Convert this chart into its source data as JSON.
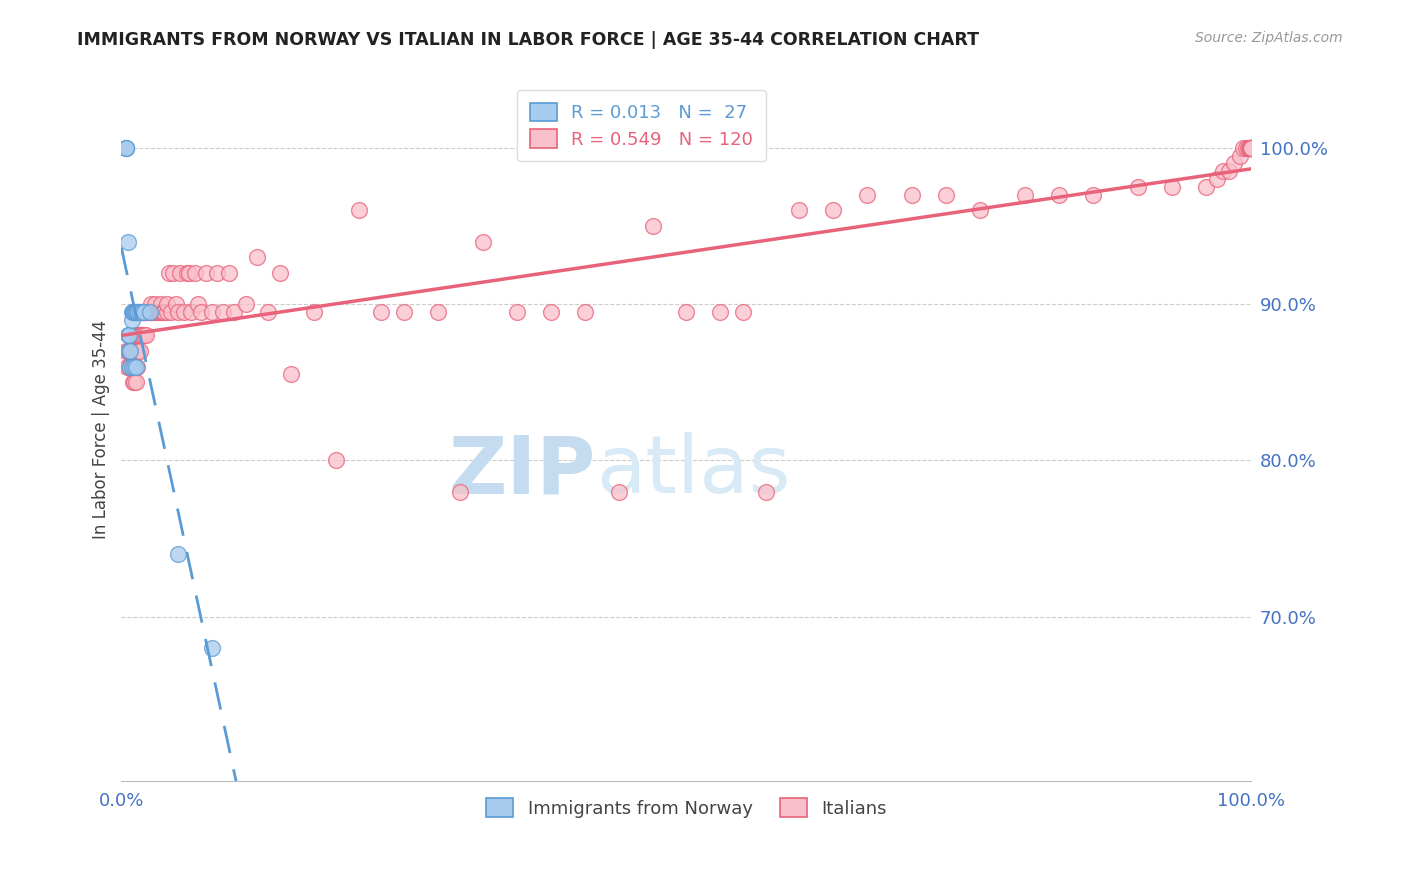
{
  "title": "IMMIGRANTS FROM NORWAY VS ITALIAN IN LABOR FORCE | AGE 35-44 CORRELATION CHART",
  "source": "Source: ZipAtlas.com",
  "ylabel": "In Labor Force | Age 35-44",
  "ytick_labels": [
    "100.0%",
    "90.0%",
    "80.0%",
    "70.0%"
  ],
  "ytick_values": [
    1.0,
    0.9,
    0.8,
    0.7
  ],
  "xlim": [
    0.0,
    1.0
  ],
  "ylim": [
    0.595,
    1.045
  ],
  "legend_norway_R": "0.013",
  "legend_norway_N": "27",
  "legend_italian_R": "0.549",
  "legend_italian_N": "120",
  "norway_fill_color": "#A8CCEE",
  "norway_edge_color": "#5B9BD5",
  "italian_fill_color": "#F9C0CB",
  "italian_edge_color": "#E8637A",
  "norway_line_color": "#5B9BD5",
  "italian_line_color": "#E8637A",
  "watermark_zip": "ZIP",
  "watermark_atlas": "atlas",
  "watermark_color": "#D0E8F8",
  "grid_color": "#CCCCCC",
  "norway_scatter_x": [
    0.004,
    0.004,
    0.004,
    0.006,
    0.006,
    0.007,
    0.007,
    0.008,
    0.008,
    0.009,
    0.009,
    0.009,
    0.01,
    0.01,
    0.011,
    0.011,
    0.012,
    0.013,
    0.013,
    0.014,
    0.015,
    0.016,
    0.018,
    0.02,
    0.025,
    0.05,
    0.08
  ],
  "norway_scatter_y": [
    1.0,
    1.0,
    1.0,
    0.94,
    0.88,
    0.88,
    0.87,
    0.87,
    0.86,
    0.895,
    0.89,
    0.86,
    0.895,
    0.895,
    0.895,
    0.86,
    0.895,
    0.895,
    0.86,
    0.895,
    0.895,
    0.895,
    0.895,
    0.895,
    0.895,
    0.74,
    0.68
  ],
  "italian_scatter_x": [
    0.004,
    0.005,
    0.006,
    0.007,
    0.008,
    0.009,
    0.009,
    0.01,
    0.01,
    0.011,
    0.011,
    0.012,
    0.012,
    0.013,
    0.013,
    0.014,
    0.014,
    0.015,
    0.015,
    0.016,
    0.016,
    0.017,
    0.017,
    0.018,
    0.018,
    0.019,
    0.02,
    0.02,
    0.021,
    0.022,
    0.022,
    0.023,
    0.024,
    0.025,
    0.026,
    0.027,
    0.028,
    0.03,
    0.03,
    0.032,
    0.033,
    0.035,
    0.035,
    0.037,
    0.038,
    0.04,
    0.04,
    0.042,
    0.044,
    0.046,
    0.048,
    0.05,
    0.052,
    0.055,
    0.058,
    0.06,
    0.062,
    0.065,
    0.068,
    0.07,
    0.075,
    0.08,
    0.085,
    0.09,
    0.095,
    0.1,
    0.11,
    0.12,
    0.13,
    0.14,
    0.15,
    0.17,
    0.19,
    0.21,
    0.23,
    0.25,
    0.28,
    0.3,
    0.32,
    0.35,
    0.38,
    0.41,
    0.44,
    0.47,
    0.5,
    0.53,
    0.55,
    0.57,
    0.6,
    0.63,
    0.66,
    0.7,
    0.73,
    0.76,
    0.8,
    0.83,
    0.86,
    0.9,
    0.93,
    0.96,
    0.97,
    0.975,
    0.98,
    0.985,
    0.99,
    0.993,
    0.995,
    0.997,
    0.998,
    0.999,
    1.0,
    1.0,
    1.0,
    1.0,
    1.0,
    1.0,
    1.0,
    1.0,
    1.0,
    1.0
  ],
  "italian_scatter_y": [
    0.87,
    0.86,
    0.87,
    0.86,
    0.87,
    0.86,
    0.87,
    0.85,
    0.87,
    0.85,
    0.87,
    0.86,
    0.88,
    0.85,
    0.87,
    0.86,
    0.88,
    0.87,
    0.88,
    0.87,
    0.88,
    0.88,
    0.895,
    0.88,
    0.895,
    0.895,
    0.88,
    0.895,
    0.895,
    0.88,
    0.895,
    0.895,
    0.895,
    0.895,
    0.9,
    0.895,
    0.895,
    0.895,
    0.9,
    0.895,
    0.895,
    0.895,
    0.9,
    0.895,
    0.895,
    0.895,
    0.9,
    0.92,
    0.895,
    0.92,
    0.9,
    0.895,
    0.92,
    0.895,
    0.92,
    0.92,
    0.895,
    0.92,
    0.9,
    0.895,
    0.92,
    0.895,
    0.92,
    0.895,
    0.92,
    0.895,
    0.9,
    0.93,
    0.895,
    0.92,
    0.855,
    0.895,
    0.8,
    0.96,
    0.895,
    0.895,
    0.895,
    0.78,
    0.94,
    0.895,
    0.895,
    0.895,
    0.78,
    0.95,
    0.895,
    0.895,
    0.895,
    0.78,
    0.96,
    0.96,
    0.97,
    0.97,
    0.97,
    0.96,
    0.97,
    0.97,
    0.97,
    0.975,
    0.975,
    0.975,
    0.98,
    0.985,
    0.985,
    0.99,
    0.995,
    1.0,
    1.0,
    1.0,
    1.0,
    1.0,
    1.0,
    1.0,
    1.0,
    1.0,
    1.0,
    1.0,
    1.0,
    1.0,
    1.0,
    1.0
  ]
}
